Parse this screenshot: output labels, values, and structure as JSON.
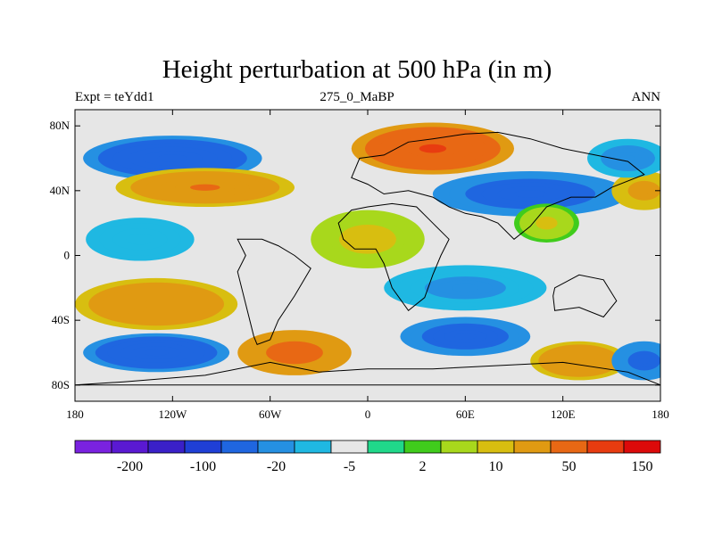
{
  "title": "Height perturbation at 500 hPa (in m)",
  "subtitles": {
    "left": "Expt = teYdd1",
    "center": "275_0_MaBP",
    "right": "ANN"
  },
  "chart_data": {
    "type": "heatmap",
    "title": "Height perturbation at 500 hPa (in m)",
    "projection": "cylindrical-equidistant",
    "xlim": [
      -180,
      180
    ],
    "ylim": [
      -90,
      90
    ],
    "x_ticks": [
      {
        "value": -180,
        "label": "180"
      },
      {
        "value": -120,
        "label": "120W"
      },
      {
        "value": -60,
        "label": "60W"
      },
      {
        "value": 0,
        "label": "0"
      },
      {
        "value": 60,
        "label": "60E"
      },
      {
        "value": 120,
        "label": "120E"
      },
      {
        "value": 180,
        "label": "180"
      }
    ],
    "y_ticks": [
      {
        "value": 80,
        "label": "80N"
      },
      {
        "value": 40,
        "label": "40N"
      },
      {
        "value": 0,
        "label": "0"
      },
      {
        "value": -40,
        "label": "40S"
      },
      {
        "value": -80,
        "label": "80S"
      }
    ],
    "colorbar": {
      "colors": [
        "#7a22e0",
        "#5a19d2",
        "#3a20c8",
        "#1f3fd6",
        "#1f66e0",
        "#2590e2",
        "#1fb8e2",
        "#e6e6e6",
        "#20d88a",
        "#40cc1c",
        "#a8d81c",
        "#d8be10",
        "#e09a12",
        "#e86814",
        "#e83c10",
        "#dc0a0a"
      ],
      "labels": [
        {
          "after_box": 1,
          "text": "-200"
        },
        {
          "after_box": 3,
          "text": "-100"
        },
        {
          "after_box": 5,
          "text": "-20"
        },
        {
          "after_box": 7,
          "text": "-5"
        },
        {
          "after_box": 9,
          "text": "2"
        },
        {
          "after_box": 11,
          "text": "10"
        },
        {
          "after_box": 13,
          "text": "50"
        },
        {
          "after_box": 15,
          "text": "150"
        }
      ]
    },
    "features": [
      {
        "lon": -120,
        "lat": 60,
        "value": -45,
        "rx": 55,
        "ry": 14
      },
      {
        "lon": -100,
        "lat": 42,
        "value": 50,
        "rx": 55,
        "ry": 12
      },
      {
        "lon": 40,
        "lat": 66,
        "value": 100,
        "rx": 50,
        "ry": 16
      },
      {
        "lon": 100,
        "lat": 38,
        "value": -40,
        "rx": 60,
        "ry": 14
      },
      {
        "lon": 170,
        "lat": 40,
        "value": 30,
        "rx": 20,
        "ry": 12
      },
      {
        "lon": 160,
        "lat": 60,
        "value": -20,
        "rx": 25,
        "ry": 12
      },
      {
        "lon": -140,
        "lat": 10,
        "value": -10,
        "rx": 50,
        "ry": 20
      },
      {
        "lon": 0,
        "lat": 10,
        "value": 15,
        "rx": 35,
        "ry": 18
      },
      {
        "lon": 110,
        "lat": 20,
        "value": 12,
        "rx": 20,
        "ry": 12
      },
      {
        "lon": -130,
        "lat": -30,
        "value": 40,
        "rx": 50,
        "ry": 16
      },
      {
        "lon": -130,
        "lat": -60,
        "value": -45,
        "rx": 45,
        "ry": 12
      },
      {
        "lon": -45,
        "lat": -60,
        "value": 70,
        "rx": 35,
        "ry": 14
      },
      {
        "lon": 60,
        "lat": -50,
        "value": -40,
        "rx": 40,
        "ry": 12
      },
      {
        "lon": 60,
        "lat": -20,
        "value": -15,
        "rx": 50,
        "ry": 14
      },
      {
        "lon": 130,
        "lat": -65,
        "value": 40,
        "rx": 30,
        "ry": 12
      },
      {
        "lon": 170,
        "lat": -65,
        "value": -30,
        "rx": 20,
        "ry": 12
      }
    ]
  }
}
